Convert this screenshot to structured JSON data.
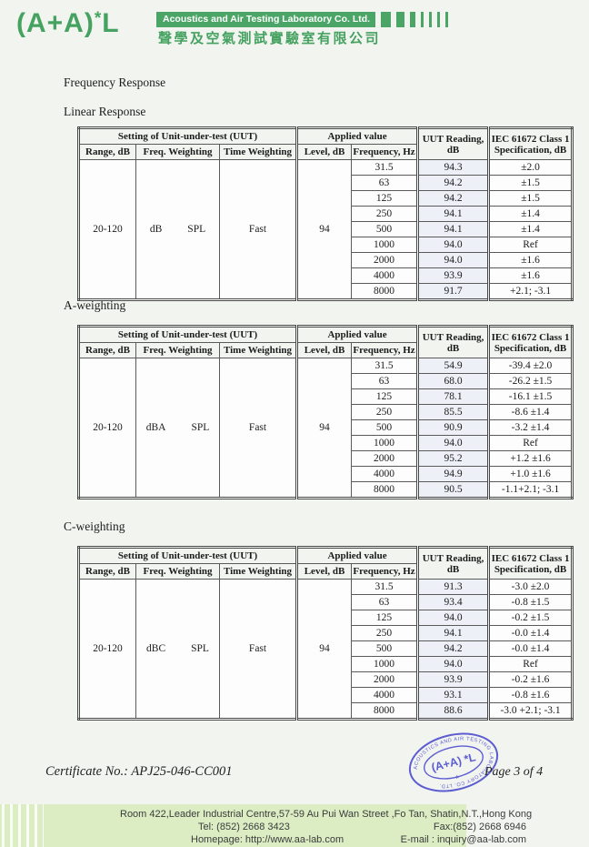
{
  "colors": {
    "brand_green": "#46a261",
    "band_green": "#4ba566",
    "footer_green": "#dcedc4",
    "stamp_blue": "#5d5dd2",
    "reading_tint": "#edf1f7"
  },
  "header": {
    "logo_parts": {
      "prefix": "(A+A)",
      "star": "*",
      "suffix": "L"
    },
    "company_en": "Acoustics and Air Testing Laboratory Co. Ltd.",
    "company_zh": "聲學及空氣測試實驗室有限公司"
  },
  "page_title": "Frequency Response",
  "sections": [
    {
      "label": "Linear Response"
    },
    {
      "label": "A-weighting"
    },
    {
      "label": "C-weighting"
    }
  ],
  "table_headers": {
    "group_uut": "Setting of Unit-under-test (UUT)",
    "group_applied": "Applied value",
    "uut_reading_line1": "UUT Reading,",
    "uut_reading_line2": "dB",
    "iec_line1": "IEC 61672 Class 1",
    "iec_line2": "Specification, dB",
    "range": "Range, dB",
    "freq_weighting": "Freq. Weighting",
    "time_weighting": "Time Weighting",
    "level": "Level, dB",
    "frequency": "Frequency, Hz"
  },
  "tables": [
    {
      "name": "linear-response",
      "range": "20-120",
      "freq_weighting": "dB",
      "freq_weighting_suffix": "SPL",
      "time_weighting": "Fast",
      "level": "94",
      "rows": [
        {
          "freq": "31.5",
          "reading": "94.3",
          "spec": "±2.0"
        },
        {
          "freq": "63",
          "reading": "94.2",
          "spec": "±1.5"
        },
        {
          "freq": "125",
          "reading": "94.2",
          "spec": "±1.5"
        },
        {
          "freq": "250",
          "reading": "94.1",
          "spec": "±1.4"
        },
        {
          "freq": "500",
          "reading": "94.1",
          "spec": "±1.4"
        },
        {
          "freq": "1000",
          "reading": "94.0",
          "spec": "Ref"
        },
        {
          "freq": "2000",
          "reading": "94.0",
          "spec": "±1.6"
        },
        {
          "freq": "4000",
          "reading": "93.9",
          "spec": "±1.6"
        },
        {
          "freq": "8000",
          "reading": "91.7",
          "spec": "+2.1; -3.1"
        }
      ]
    },
    {
      "name": "a-weighting",
      "range": "20-120",
      "freq_weighting": "dBA",
      "freq_weighting_suffix": "SPL",
      "time_weighting": "Fast",
      "level": "94",
      "rows": [
        {
          "freq": "31.5",
          "reading": "54.9",
          "spec": "-39.4 ±2.0"
        },
        {
          "freq": "63",
          "reading": "68.0",
          "spec": "-26.2 ±1.5"
        },
        {
          "freq": "125",
          "reading": "78.1",
          "spec": "-16.1 ±1.5"
        },
        {
          "freq": "250",
          "reading": "85.5",
          "spec": "-8.6 ±1.4"
        },
        {
          "freq": "500",
          "reading": "90.9",
          "spec": "-3.2 ±1.4"
        },
        {
          "freq": "1000",
          "reading": "94.0",
          "spec": "Ref"
        },
        {
          "freq": "2000",
          "reading": "95.2",
          "spec": "+1.2 ±1.6"
        },
        {
          "freq": "4000",
          "reading": "94.9",
          "spec": "+1.0 ±1.6"
        },
        {
          "freq": "8000",
          "reading": "90.5",
          "spec": "-1.1+2.1; -3.1"
        }
      ]
    },
    {
      "name": "c-weighting",
      "range": "20-120",
      "freq_weighting": "dBC",
      "freq_weighting_suffix": "SPL",
      "time_weighting": "Fast",
      "level": "94",
      "rows": [
        {
          "freq": "31.5",
          "reading": "91.3",
          "spec": "-3.0 ±2.0"
        },
        {
          "freq": "63",
          "reading": "93.4",
          "spec": "-0.8 ±1.5"
        },
        {
          "freq": "125",
          "reading": "94.0",
          "spec": "-0.2 ±1.5"
        },
        {
          "freq": "250",
          "reading": "94.1",
          "spec": "-0.0 ±1.4"
        },
        {
          "freq": "500",
          "reading": "94.2",
          "spec": "-0.0 ±1.4"
        },
        {
          "freq": "1000",
          "reading": "94.0",
          "spec": "Ref"
        },
        {
          "freq": "2000",
          "reading": "93.9",
          "spec": "-0.2 ±1.6"
        },
        {
          "freq": "4000",
          "reading": "93.1",
          "spec": "-0.8 ±1.6"
        },
        {
          "freq": "8000",
          "reading": "88.6",
          "spec": "-3.0 +2.1; -3.1"
        }
      ]
    }
  ],
  "certificate_no": "Certificate No.: APJ25-046-CC001",
  "page_number": "Page 3 of 4",
  "stamp": {
    "ring_text": "ACOUSTICS AND AIR TESTING LABORATORY CO. LTD.",
    "center_text": "(A+A) *L",
    "bottom_glyph": "*"
  },
  "footer": {
    "address": "Room 422,Leader Industrial Centre,57-59 Au Pui Wan Street ,Fo Tan, Shatin,N.T.,Hong Kong",
    "tel": "Tel: (852) 2668 3423",
    "fax": "Fax:(852) 2668 6946",
    "homepage": "Homepage: http://www.aa-lab.com",
    "email": "E-mail : inquiry@aa-lab.com"
  }
}
